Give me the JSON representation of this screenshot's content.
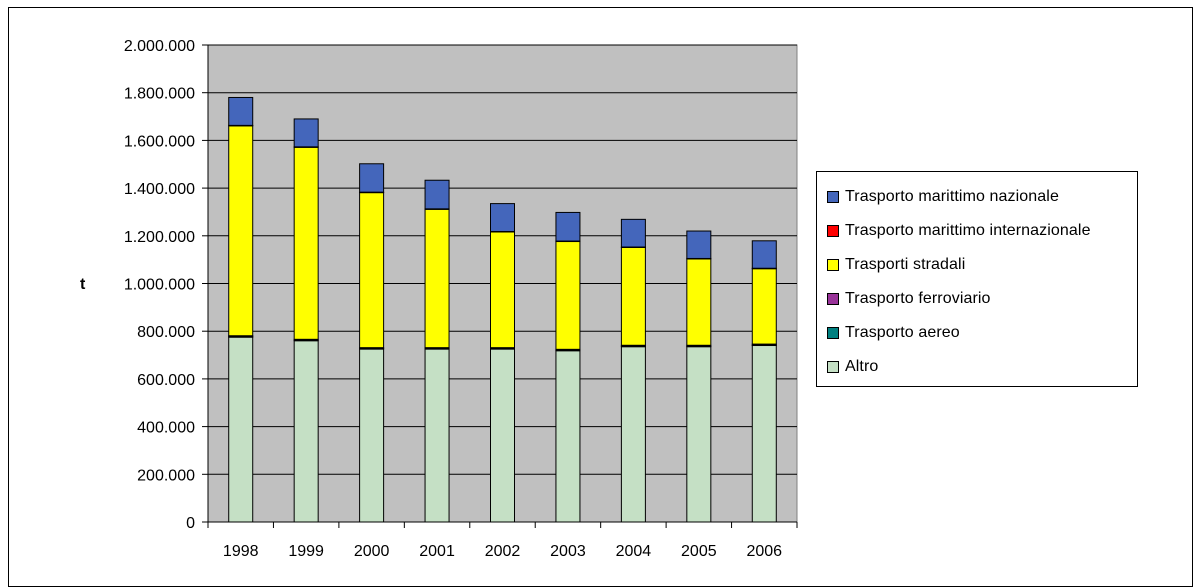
{
  "chart_data": {
    "type": "bar",
    "stacked": true,
    "categories": [
      "1998",
      "1999",
      "2000",
      "2001",
      "2002",
      "2003",
      "2004",
      "2005",
      "2006"
    ],
    "series": [
      {
        "name": "Altro",
        "color": "#c5e0c5",
        "values": [
          775000,
          760000,
          725000,
          725000,
          725000,
          718000,
          735000,
          735000,
          740000
        ]
      },
      {
        "name": "Trasporto aereo",
        "color": "#008080",
        "values": [
          2000,
          2000,
          2000,
          2000,
          2000,
          2000,
          2000,
          2000,
          2000
        ]
      },
      {
        "name": "Trasporto ferroviario",
        "color": "#993399",
        "values": [
          4000,
          4000,
          4000,
          4000,
          4000,
          4000,
          4000,
          4000,
          4000
        ]
      },
      {
        "name": "Trasporti stradali",
        "color": "#ffff00",
        "values": [
          880000,
          805000,
          650000,
          580000,
          485000,
          452000,
          410000,
          362000,
          316000
        ]
      },
      {
        "name": "Trasporto marittimo internazionale",
        "color": "#ff0000",
        "values": [
          2000,
          2000,
          2000,
          2000,
          2000,
          2000,
          2000,
          2000,
          2000
        ]
      },
      {
        "name": "Trasporto marittimo nazionale",
        "color": "#4466bb",
        "values": [
          117000,
          117000,
          119000,
          120000,
          117000,
          120000,
          116000,
          115000,
          115000
        ]
      }
    ],
    "ylabel": "t",
    "ylim": [
      0,
      2000000
    ],
    "yticks": [
      "0",
      "200.000",
      "400.000",
      "600.000",
      "800.000",
      "1.000.000",
      "1.200.000",
      "1.400.000",
      "1.600.000",
      "1.800.000",
      "2.000.000"
    ],
    "grid": true,
    "plot_background": "#c0c0c0",
    "legend_position": "right"
  },
  "legend": [
    {
      "label": "Trasporto marittimo nazionale",
      "color": "#4466bb"
    },
    {
      "label": "Trasporto marittimo internazionale",
      "color": "#ff0000"
    },
    {
      "label": "Trasporti stradali",
      "color": "#ffff00"
    },
    {
      "label": "Trasporto ferroviario",
      "color": "#993399"
    },
    {
      "label": "Trasporto aereo",
      "color": "#008080"
    },
    {
      "label": "Altro",
      "color": "#c5e0c5"
    }
  ]
}
